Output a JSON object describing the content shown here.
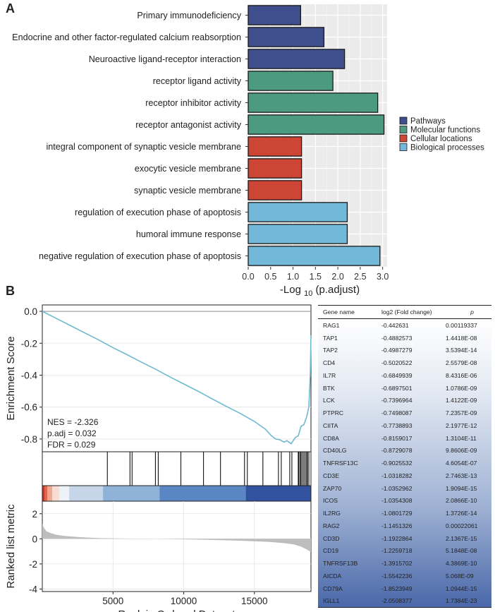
{
  "panel_labels": {
    "a": "A",
    "b": "B"
  },
  "colors": {
    "pathways": "#3f4f8e",
    "molecular": "#4c9a7f",
    "cellular": "#cc4535",
    "biological": "#72b8d8",
    "es_line": "#6dbad2",
    "metric_fill": "#bdbdbd"
  },
  "chart_data": [
    {
      "type": "bar",
      "orientation": "horizontal",
      "categories": [
        "Primary immunodeficiency",
        "Endocrine and other factor-regulated calcium reabsorption",
        "Neuroactive ligand-receptor interaction",
        "receptor ligand activity",
        "receptor inhibitor activity",
        "receptor antagonist activity",
        "integral component of synaptic vesicle membrane",
        "exocytic vesicle membrane",
        "synaptic vesicle membrane",
        "regulation of execution phase of apoptosis",
        "humoral immune response",
        "negative regulation of execution phase of apoptosis"
      ],
      "values": [
        1.17,
        1.69,
        2.15,
        1.89,
        2.89,
        3.03,
        1.19,
        1.19,
        1.19,
        2.21,
        2.21,
        2.94
      ],
      "groups": [
        "pathways",
        "pathways",
        "pathways",
        "molecular",
        "molecular",
        "molecular",
        "cellular",
        "cellular",
        "cellular",
        "biological",
        "biological",
        "biological"
      ],
      "xlabel_main": "-Log",
      "xlabel_sub": "10",
      "xlabel_rest": "(p.adjust)",
      "xlim": [
        0,
        3.1
      ],
      "xticks": [
        "0.0",
        "0.5",
        "1.0",
        "1.5",
        "2.0",
        "2.5",
        "3.0"
      ],
      "legend": [
        {
          "key": "pathways",
          "label": "Pathways"
        },
        {
          "key": "molecular",
          "label": "Molecular functions"
        },
        {
          "key": "cellular",
          "label": "Cellular locations"
        },
        {
          "key": "biological",
          "label": "Biological processes"
        }
      ],
      "legend_position": "right",
      "grid": true
    },
    {
      "type": "line",
      "title": "",
      "ylabel": "Enrichment Score",
      "ylim": [
        -0.88,
        0.04
      ],
      "yticks": [
        "0.0",
        "-0.2",
        "-0.4",
        "-0.6",
        "-0.8"
      ],
      "xlim": [
        0,
        19000
      ],
      "stats": [
        "NES = -2.326",
        "p.adj = 0.032",
        "FDR = 0.029"
      ],
      "x": [
        0,
        1000,
        2000,
        3000,
        4000,
        5000,
        6000,
        7000,
        8000,
        9000,
        10000,
        11000,
        12000,
        13000,
        14000,
        15000,
        15800,
        16200,
        16500,
        16800,
        17100,
        17300,
        17600,
        17900,
        18100,
        18300,
        18500,
        18700,
        18850,
        18950,
        19000
      ],
      "y": [
        0.0,
        -0.045,
        -0.09,
        -0.135,
        -0.18,
        -0.228,
        -0.272,
        -0.318,
        -0.362,
        -0.41,
        -0.455,
        -0.5,
        -0.548,
        -0.595,
        -0.64,
        -0.69,
        -0.74,
        -0.78,
        -0.8,
        -0.805,
        -0.82,
        -0.81,
        -0.83,
        -0.79,
        -0.78,
        -0.72,
        -0.71,
        -0.66,
        -0.6,
        -0.4,
        -0.15
      ],
      "hit_ranks": [
        4600,
        6200,
        6350,
        8000,
        8200,
        9800,
        11400,
        12600,
        14300,
        14500,
        15600,
        16700,
        16900,
        17500,
        17650,
        18100,
        18150,
        18250,
        18300,
        18400,
        18500,
        18600,
        18700,
        18750,
        18850
      ]
    },
    {
      "type": "area",
      "ylabel": "Ranked list metric",
      "xlabel": "Rank in Ordered Dataset",
      "ylim": [
        -4.2,
        3
      ],
      "yticks": [
        "2",
        "0",
        "-2",
        "-4"
      ],
      "ytick_values": [
        2,
        0,
        -2,
        -4
      ],
      "xticks": [
        "5000",
        "10000",
        "15000"
      ],
      "xtick_values": [
        5000,
        10000,
        15000
      ],
      "x": [
        0,
        100,
        300,
        600,
        1000,
        1500,
        2500,
        4000,
        6000,
        8000,
        10000,
        12000,
        14000,
        16000,
        17000,
        17800,
        18300,
        18700,
        19000
      ],
      "values": [
        1.2,
        0.9,
        0.6,
        0.45,
        0.32,
        0.24,
        0.14,
        0.06,
        0.02,
        0.0,
        -0.04,
        -0.09,
        -0.15,
        -0.24,
        -0.33,
        -0.45,
        -0.62,
        -0.85,
        -1.05
      ]
    }
  ],
  "table": {
    "headers": [
      "Gene name",
      "log2 (Fold change)",
      "p"
    ],
    "rows": [
      [
        "RAG1",
        "-0.442631",
        "0.00119337"
      ],
      [
        "TAP1",
        "-0.4882573",
        "1.4418E-08"
      ],
      [
        "TAP2",
        "-0.4987279",
        "3.5394E-14"
      ],
      [
        "CD4",
        "-0.5020522",
        "2.5579E-08"
      ],
      [
        "IL7R",
        "-0.6849939",
        "8.4316E-06"
      ],
      [
        "BTK",
        "-0.6897501",
        "1.0786E-09"
      ],
      [
        "LCK",
        "-0.7396964",
        "1.4122E-09"
      ],
      [
        "PTPRC",
        "-0.7498087",
        "7.2357E-09"
      ],
      [
        "CIITA",
        "-0.7738893",
        "2.1977E-12"
      ],
      [
        "CD8A",
        "-0.8159017",
        "1.3104E-11"
      ],
      [
        "CD40LG",
        "-0.8729078",
        "9.8606E-09"
      ],
      [
        "TNFRSF13C",
        "-0.9025532",
        "4.6054E-07"
      ],
      [
        "CD3E",
        "-1.0318282",
        "2.7463E-13"
      ],
      [
        "ZAP70",
        "-1.0352962",
        "1.9094E-15"
      ],
      [
        "ICOS",
        "-1.0354308",
        "2.0866E-10"
      ],
      [
        "IL2RG",
        "-1.0801729",
        "1.3726E-14"
      ],
      [
        "RAG2",
        "-1.1451326",
        "0.00022061"
      ],
      [
        "CD3D",
        "-1.1922864",
        "2.1367E-15"
      ],
      [
        "CD19",
        "-1.2259718",
        "5.1848E-08"
      ],
      [
        "TNFRSF13B",
        "-1.3915702",
        "4.3869E-10"
      ],
      [
        "AICDA",
        "-1.5542236",
        "5.068E-09"
      ],
      [
        "CD79A",
        "-1.8523949",
        "1.0944E-15"
      ],
      [
        "IGLL1",
        "-2.0508377",
        "1.7384E-23"
      ]
    ]
  }
}
